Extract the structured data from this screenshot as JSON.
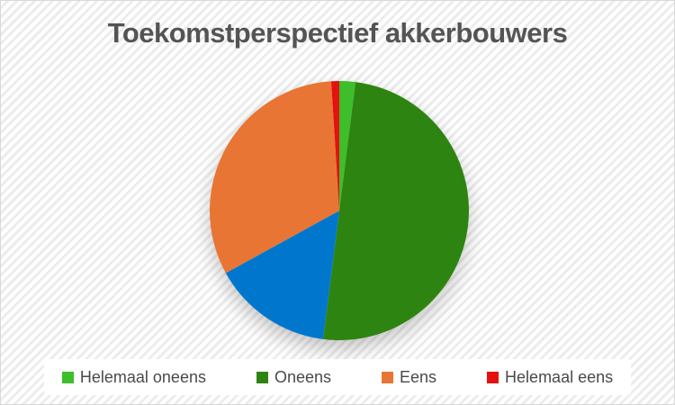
{
  "chart_data": {
    "type": "pie",
    "title": "Toekomstperspectief akkerbouwers",
    "legend_position": "bottom",
    "start_angle_deg": 0,
    "direction": "clockwise",
    "unit": "percent",
    "slices": [
      {
        "label": "Helemaal oneens",
        "percent": 2,
        "color": "#3dbe2a",
        "in_legend": true
      },
      {
        "label": "Oneens",
        "percent": 50,
        "color": "#2e8410",
        "in_legend": true
      },
      {
        "label": "",
        "percent": 15,
        "color": "#0077cd",
        "in_legend": false
      },
      {
        "label": "Eens",
        "percent": 32,
        "color": "#e87533",
        "in_legend": true
      },
      {
        "label": "Helemaal eens",
        "percent": 1,
        "color": "#e51010",
        "in_legend": true
      }
    ],
    "title_color": "#545454",
    "legend_text_color": "#4a4a4a"
  }
}
